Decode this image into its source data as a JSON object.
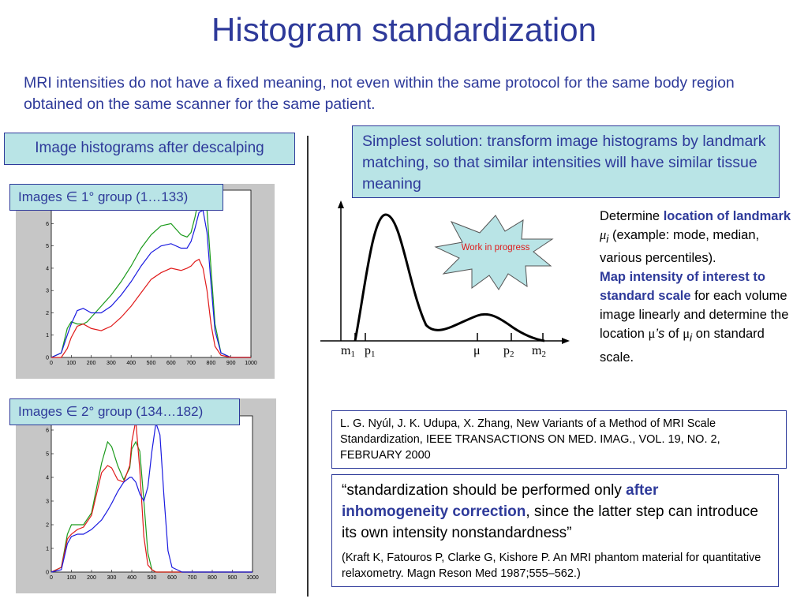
{
  "title": "Histogram standardization",
  "intro": "MRI intensities do not have a fixed meaning, not even within the same protocol for the same body region obtained on the same scanner for the same patient.",
  "left_label": "Image histograms after descalping",
  "group1_label": "Images ∈ 1° group (1…133)",
  "group2_label": "Images ∈ 2° group (134…182)",
  "solution_box": "Simplest solution: transform image histograms by landmark matching, so that similar intensities will have similar tissue meaning",
  "starburst_text": "Work in progress",
  "landmark_plot": {
    "labels": {
      "m1": "m",
      "m1_sub": "1",
      "p1": "p",
      "p1_sub": "1",
      "mu": "μ",
      "p2": "p",
      "p2_sub": "2",
      "m2": "m",
      "m2_sub": "2"
    }
  },
  "right_text": {
    "p1_a": "Determine ",
    "p1_b": "location of landmark",
    "p1_mu": "μ",
    "p1_i": "i",
    "p1_c": " (example: mode, median, various percentiles).",
    "p2_a": "Map intensity of interest to standard scale",
    "p2_b": " for each volume image linearly and determine the location ",
    "p2_mu": "μ",
    "p2_s": "’s",
    "p2_c": " of ",
    "p2_mu2": "μ",
    "p2_i": "i",
    "p2_d": " on standard scale."
  },
  "reference": "L. G. Nyúl, J. K. Udupa, X. Zhang, New Variants of a Method of MRI Scale Standardization, IEEE TRANSACTIONS ON MED. IMAG., VOL. 19, NO. 2, FEBRUARY 2000",
  "quote": {
    "a": "“standardization should be performed only ",
    "b": "after inhomogeneity correction",
    "c": ", since the latter step can introduce its own intensity nonstandardness”",
    "cite": "(Kraft K, Fatouros P, Clarke G, Kishore P. An MRI phantom material for quantitative relaxometry. Magn Reson Med 1987;555–562.)"
  },
  "colors": {
    "accent": "#2e3a9a",
    "box_fill": "#b9e4e6",
    "starburst_fill": "#b9e4e6"
  },
  "chart_data": [
    {
      "type": "line",
      "x": [
        0,
        50,
        80,
        100,
        130,
        160,
        180,
        200,
        250,
        300,
        350,
        400,
        450,
        500,
        550,
        600,
        650,
        680,
        700,
        720,
        740,
        760,
        780,
        800,
        820,
        850,
        900,
        950,
        1000
      ],
      "xticks": [
        0,
        100,
        200,
        300,
        400,
        500,
        600,
        700,
        800,
        900,
        1000
      ],
      "yticks": [
        0,
        1,
        2,
        3,
        4,
        5,
        6,
        7
      ],
      "xlim": [
        0,
        1000
      ],
      "ylim": [
        0,
        7.5
      ],
      "series": [
        {
          "color": "#1a9a1a",
          "values": [
            0,
            0.2,
            1.3,
            1.6,
            1.5,
            1.5,
            1.6,
            1.8,
            2.3,
            2.8,
            3.4,
            4.1,
            4.9,
            5.5,
            5.9,
            6.0,
            5.5,
            5.4,
            5.6,
            6.3,
            7.2,
            7.7,
            6.6,
            4.0,
            1.5,
            0.2,
            0,
            0,
            0
          ]
        },
        {
          "color": "#1a1ae0",
          "values": [
            0,
            0.2,
            1.0,
            1.5,
            2.1,
            2.2,
            2.1,
            2.0,
            2.0,
            2.3,
            2.8,
            3.4,
            4.1,
            4.7,
            5.0,
            5.1,
            4.9,
            4.9,
            5.2,
            5.8,
            6.5,
            6.6,
            5.6,
            3.3,
            1.2,
            0.2,
            0,
            0,
            0
          ]
        },
        {
          "color": "#e01a1a",
          "values": [
            0,
            0,
            0.4,
            0.9,
            1.4,
            1.5,
            1.4,
            1.3,
            1.2,
            1.4,
            1.8,
            2.3,
            2.9,
            3.5,
            3.8,
            4.0,
            3.9,
            4.0,
            4.1,
            4.3,
            4.4,
            4.0,
            3.0,
            1.5,
            0.5,
            0.1,
            0,
            0,
            0
          ]
        }
      ]
    },
    {
      "type": "line",
      "x": [
        0,
        50,
        80,
        100,
        130,
        160,
        200,
        250,
        280,
        300,
        330,
        360,
        390,
        400,
        420,
        440,
        460,
        480,
        500,
        520,
        540,
        560,
        580,
        600,
        650,
        700,
        800,
        900,
        1000
      ],
      "xticks": [
        0,
        100,
        200,
        300,
        400,
        500,
        600,
        700,
        800,
        900,
        1000
      ],
      "yticks": [
        0,
        1,
        2,
        3,
        4,
        5,
        6
      ],
      "xlim": [
        0,
        1000
      ],
      "ylim": [
        0,
        6.6
      ],
      "series": [
        {
          "color": "#1a9a1a",
          "values": [
            0,
            0.2,
            1.6,
            2.0,
            2.0,
            2.0,
            2.5,
            4.6,
            5.5,
            5.3,
            4.5,
            3.9,
            4.4,
            5.2,
            5.5,
            5.1,
            3.0,
            0.8,
            0.1,
            0,
            0,
            0,
            0,
            0,
            0,
            0,
            0,
            0,
            0
          ]
        },
        {
          "color": "#e01a1a",
          "values": [
            0,
            0.2,
            1.4,
            1.6,
            1.8,
            1.9,
            2.4,
            4.2,
            4.5,
            4.4,
            3.9,
            3.8,
            4.5,
            5.5,
            6.4,
            4.3,
            1.5,
            0.3,
            0.1,
            0,
            0,
            0,
            0,
            0,
            0,
            0,
            0,
            0,
            0
          ]
        },
        {
          "color": "#1a1ae0",
          "values": [
            0,
            0.1,
            1.2,
            1.5,
            1.6,
            1.6,
            1.8,
            2.2,
            2.6,
            2.9,
            3.4,
            3.8,
            4.0,
            4.0,
            3.8,
            3.3,
            3.0,
            3.6,
            5.1,
            6.3,
            5.8,
            3.2,
            0.9,
            0.2,
            0,
            0,
            0,
            0,
            0
          ]
        }
      ]
    }
  ]
}
